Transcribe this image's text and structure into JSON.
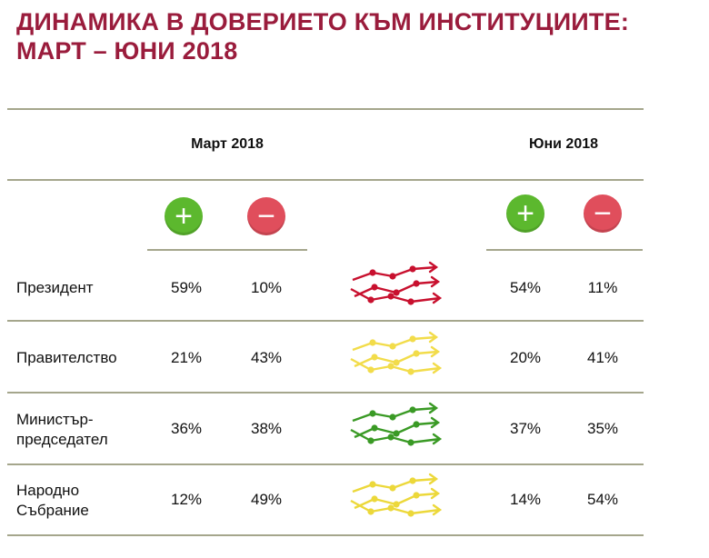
{
  "title": {
    "line1": "ДИНАМИКА В ДОВЕРИЕТО КЪМ ИНСТИТУЦИИТЕ:",
    "line2": "МАРТ – ЮНИ 2018"
  },
  "columns": {
    "march": "Март 2018",
    "june": "Юни 2018",
    "positive_symbol": "+",
    "negative_symbol": "−"
  },
  "colors": {
    "title": "#9a1c3c",
    "positive": "#5cb82e",
    "negative": "#e04e5c",
    "rule": "#a5a68c"
  },
  "chart_data": {
    "type": "table",
    "columns": [
      "Март 2018 +",
      "Март 2018 −",
      "Юни 2018 +",
      "Юни 2018 −"
    ],
    "rows": [
      {
        "label_lines": [
          "Президент"
        ],
        "march_pos": "59%",
        "march_neg": "10%",
        "june_pos": "54%",
        "june_neg": "11%",
        "trend_icon": "trend-arrows-icon",
        "trend_color": "#c8102e"
      },
      {
        "label_lines": [
          "Правителство"
        ],
        "march_pos": "21%",
        "march_neg": "43%",
        "june_pos": "20%",
        "june_neg": "41%",
        "trend_icon": "trend-arrows-icon",
        "trend_color": "#f2dc4a"
      },
      {
        "label_lines": [
          "Министър-",
          "председател"
        ],
        "march_pos": "36%",
        "march_neg": "38%",
        "june_pos": "37%",
        "june_neg": "35%",
        "trend_icon": "trend-arrows-icon",
        "trend_color": "#3a9a25"
      },
      {
        "label_lines": [
          "Народно",
          "Събрание"
        ],
        "march_pos": "12%",
        "march_neg": "49%",
        "june_pos": "14%",
        "june_neg": "54%",
        "trend_icon": "trend-arrows-icon",
        "trend_color": "#ecd83a"
      }
    ]
  }
}
